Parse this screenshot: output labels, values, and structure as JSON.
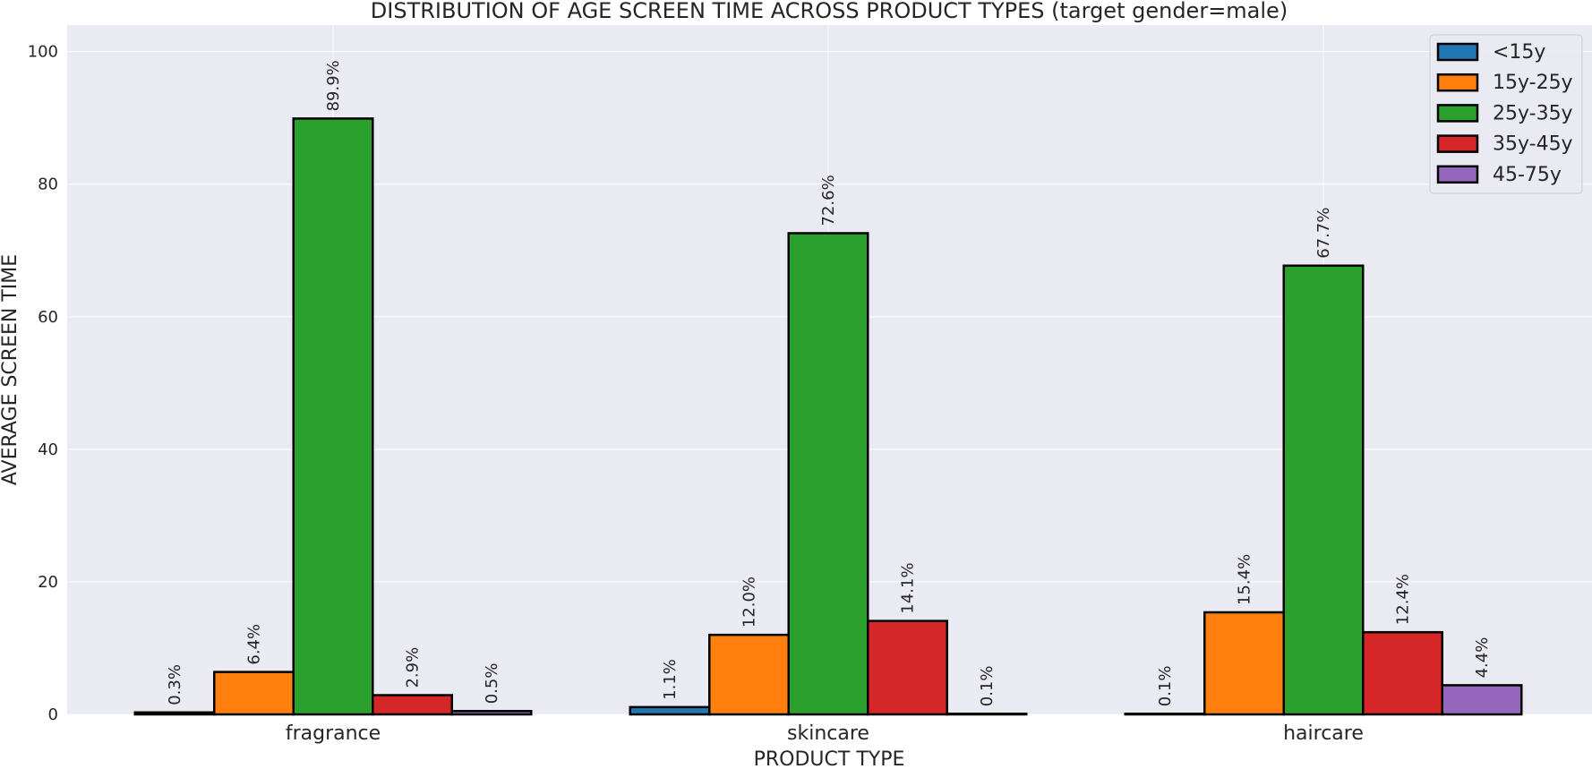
{
  "chart_data": {
    "type": "bar",
    "title": "DISTRIBUTION OF AGE SCREEN TIME ACROSS PRODUCT TYPES (target gender=male)",
    "xlabel": "PRODUCT TYPE",
    "ylabel": "AVERAGE SCREEN TIME",
    "categories": [
      "fragrance",
      "skincare",
      "haircare"
    ],
    "ylim": [
      0,
      104
    ],
    "yticks": [
      0,
      20,
      40,
      60,
      80,
      100
    ],
    "grid": true,
    "legend_position": "top-right",
    "series": [
      {
        "name": "<15y",
        "color": "#1f77b4",
        "values": [
          0.3,
          1.1,
          0.1
        ],
        "labels": [
          "0.3%",
          "1.1%",
          "0.1%"
        ]
      },
      {
        "name": "15y-25y",
        "color": "#ff7f0e",
        "values": [
          6.4,
          12.0,
          15.4
        ],
        "labels": [
          "6.4%",
          "12.0%",
          "15.4%"
        ]
      },
      {
        "name": "25y-35y",
        "color": "#2ca02c",
        "values": [
          89.9,
          72.6,
          67.7
        ],
        "labels": [
          "89.9%",
          "72.6%",
          "67.7%"
        ]
      },
      {
        "name": "35y-45y",
        "color": "#d62728",
        "values": [
          2.9,
          14.1,
          12.4
        ],
        "labels": [
          "2.9%",
          "14.1%",
          "12.4%"
        ]
      },
      {
        "name": "45-75y",
        "color": "#9467bd",
        "values": [
          0.5,
          0.1,
          4.4
        ],
        "labels": [
          "0.5%",
          "0.1%",
          "4.4%"
        ]
      }
    ]
  }
}
